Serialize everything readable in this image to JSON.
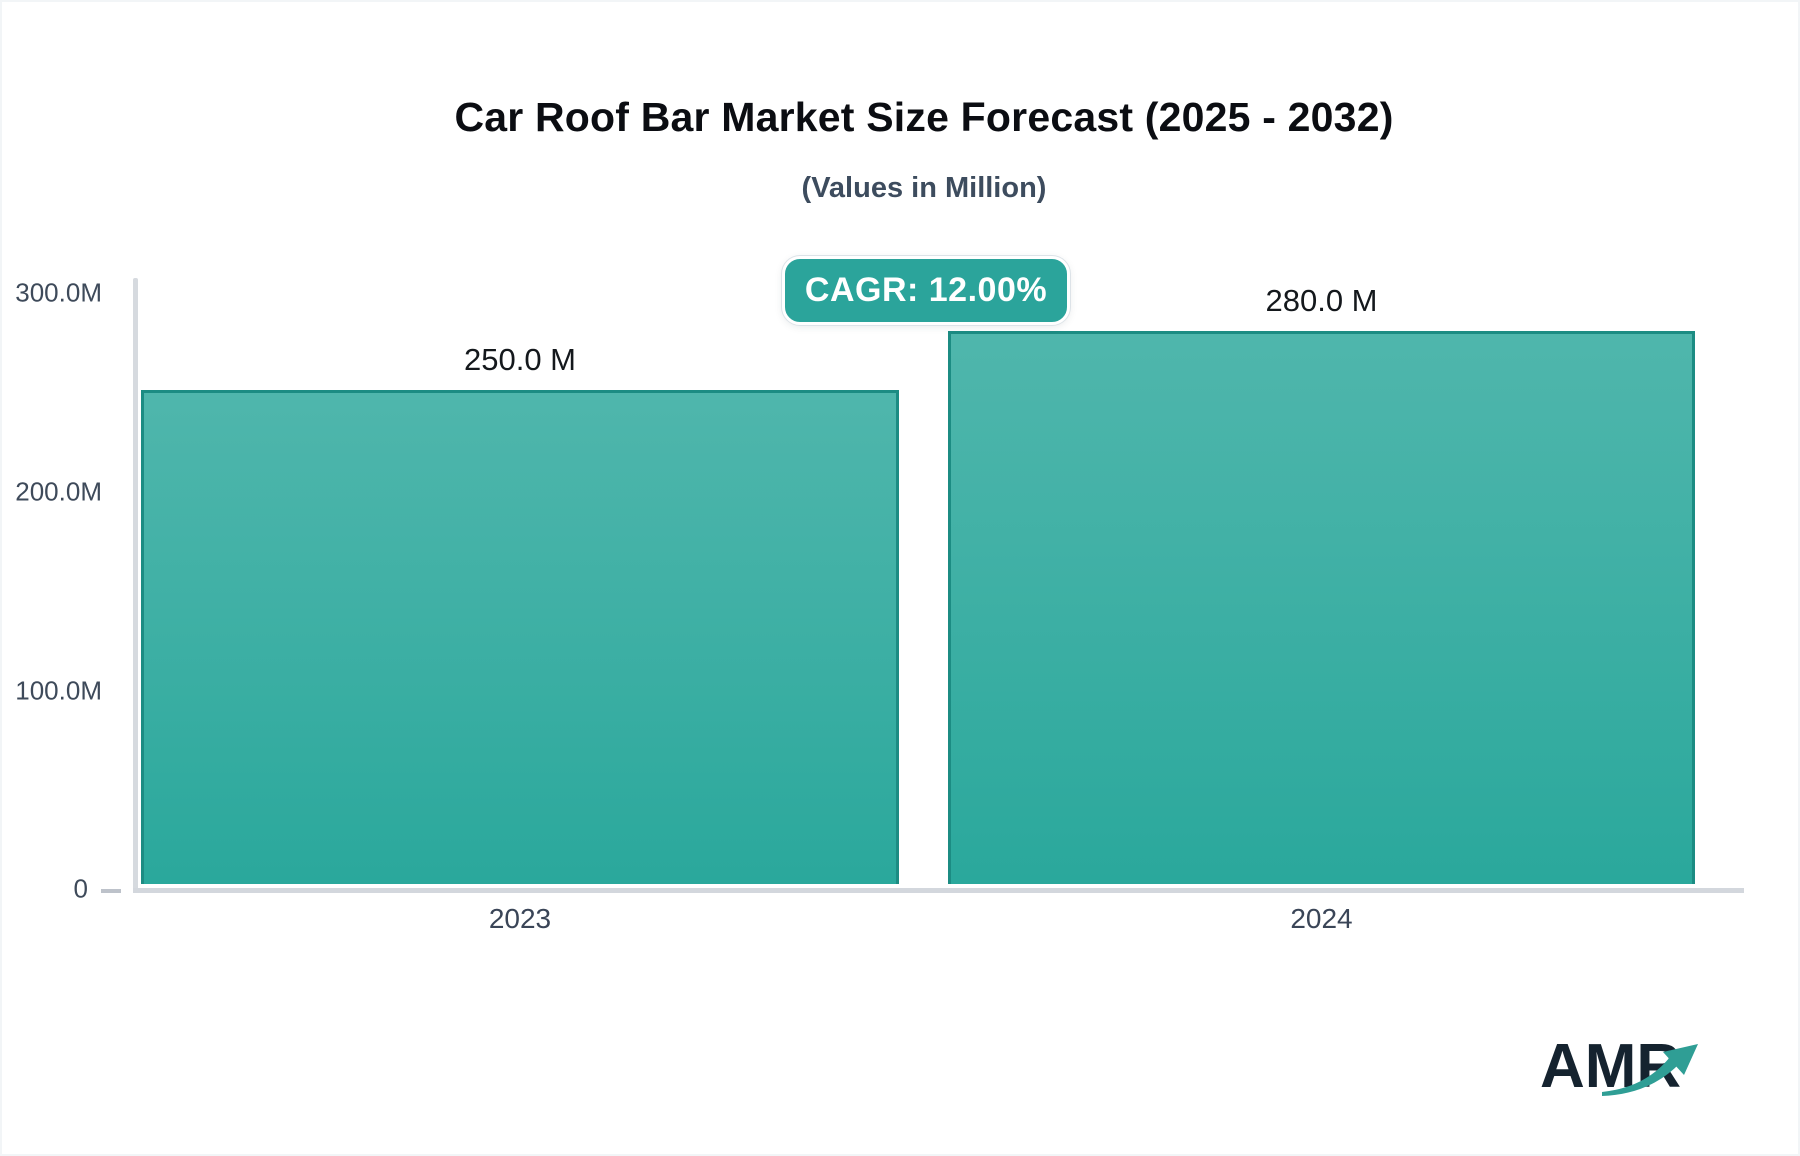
{
  "header": {
    "title": "Car Roof Bar Market Size Forecast (2025 - 2032)",
    "subtitle": "(Values in Million)"
  },
  "cagr_badge": {
    "label": "CAGR: 12.00%",
    "background": "#2BA49B"
  },
  "chart_data": {
    "type": "bar",
    "title": "Car Roof Bar Market Size Forecast (2025 - 2032)",
    "subtitle": "(Values in Million)",
    "unit": "Million",
    "cagr_percent": 12.0,
    "categories": [
      "2023",
      "2024"
    ],
    "values": [
      250.0,
      280.0
    ],
    "value_labels": [
      "250.0 M",
      "280.0 M"
    ],
    "ylim": [
      0,
      300
    ],
    "yticks": [
      300,
      200,
      100,
      0
    ],
    "ytick_labels": [
      "300.0M",
      "200.0M",
      "100.0M",
      "0"
    ],
    "grid": false,
    "legend": false,
    "colors": {
      "bar_gradient_top": "#4FB6AC",
      "bar_gradient_bottom": "#2AA89C",
      "bar_border": "#1C8C83",
      "axis_line": "#D3D7DD",
      "tick_text": "#3E4A5A",
      "value_text": "#14181C",
      "badge_teal": "#2BA49B"
    }
  },
  "logo": {
    "text": "AMR",
    "text_color": "#15232F",
    "arrow_color": "#2F9E95",
    "arrow_icon": "trend-up-arrow"
  }
}
